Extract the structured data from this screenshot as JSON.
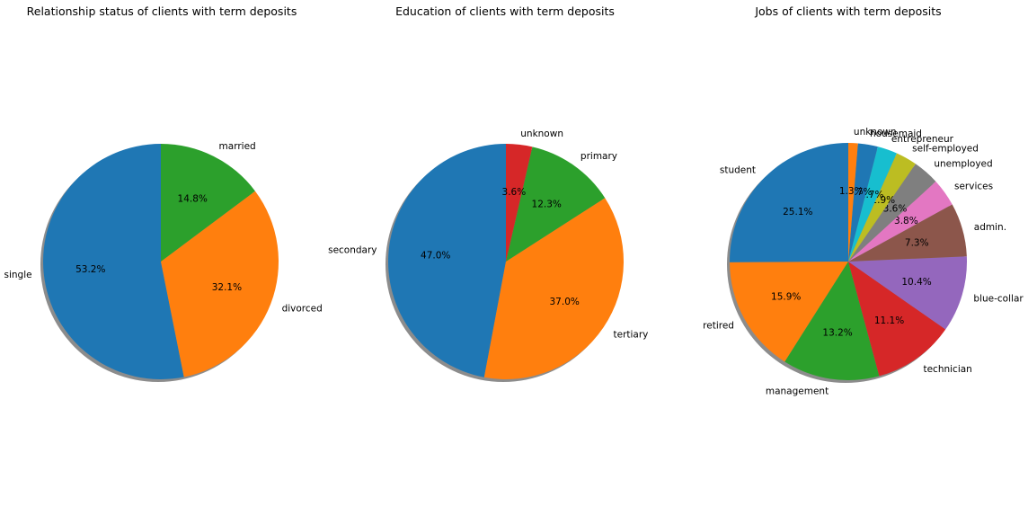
{
  "chart_data": [
    {
      "type": "pie",
      "title": "Relationship status of clients with term deposits",
      "slices": [
        {
          "label": "single",
          "value": 53.2,
          "pct_label": "53.2%",
          "color": "#1f77b4"
        },
        {
          "label": "divorced",
          "value": 32.1,
          "pct_label": "32.1%",
          "color": "#ff7f0e"
        },
        {
          "label": "married",
          "value": 14.8,
          "pct_label": "14.8%",
          "color": "#2ca02c"
        }
      ],
      "start_angle": 90,
      "shadow": true
    },
    {
      "type": "pie",
      "title": "Education of clients with term deposits",
      "slices": [
        {
          "label": "secondary",
          "value": 47.0,
          "pct_label": "47.0%",
          "color": "#1f77b4"
        },
        {
          "label": "tertiary",
          "value": 37.0,
          "pct_label": "37.0%",
          "color": "#ff7f0e"
        },
        {
          "label": "primary",
          "value": 12.3,
          "pct_label": "12.3%",
          "color": "#2ca02c"
        },
        {
          "label": "unknown",
          "value": 3.6,
          "pct_label": "3.6%",
          "color": "#d62728"
        }
      ],
      "start_angle": 90,
      "shadow": true
    },
    {
      "type": "pie",
      "title": "Jobs of clients with term deposits",
      "slices": [
        {
          "label": "student",
          "value": 25.1,
          "pct_label": "25.1%",
          "color": "#1f77b4"
        },
        {
          "label": "retired",
          "value": 15.9,
          "pct_label": "15.9%",
          "color": "#ff7f0e"
        },
        {
          "label": "management",
          "value": 13.2,
          "pct_label": "13.2%",
          "color": "#2ca02c"
        },
        {
          "label": "technician",
          "value": 11.1,
          "pct_label": "11.1%",
          "color": "#d62728"
        },
        {
          "label": "blue-collar",
          "value": 10.4,
          "pct_label": "10.4%",
          "color": "#9467bd"
        },
        {
          "label": "admin.",
          "value": 7.3,
          "pct_label": "7.3%",
          "color": "#8c564b"
        },
        {
          "label": "services",
          "value": 3.8,
          "pct_label": "3.8%",
          "color": "#e377c2"
        },
        {
          "label": "unemployed",
          "value": 3.6,
          "pct_label": "3.6%",
          "color": "#7f7f7f"
        },
        {
          "label": "self-employed",
          "value": 2.9,
          "pct_label": "2.9%",
          "color": "#bcbd22"
        },
        {
          "label": "entrepreneur",
          "value": 2.7,
          "pct_label": "2.7%",
          "color": "#17becf"
        },
        {
          "label": "housemaid",
          "value": 2.7,
          "pct_label": "2.7%",
          "color": "#1f77b4"
        },
        {
          "label": "unknown",
          "value": 1.3,
          "pct_label": "1.3%",
          "color": "#ff7f0e"
        }
      ],
      "start_angle": 90,
      "shadow": true
    }
  ]
}
